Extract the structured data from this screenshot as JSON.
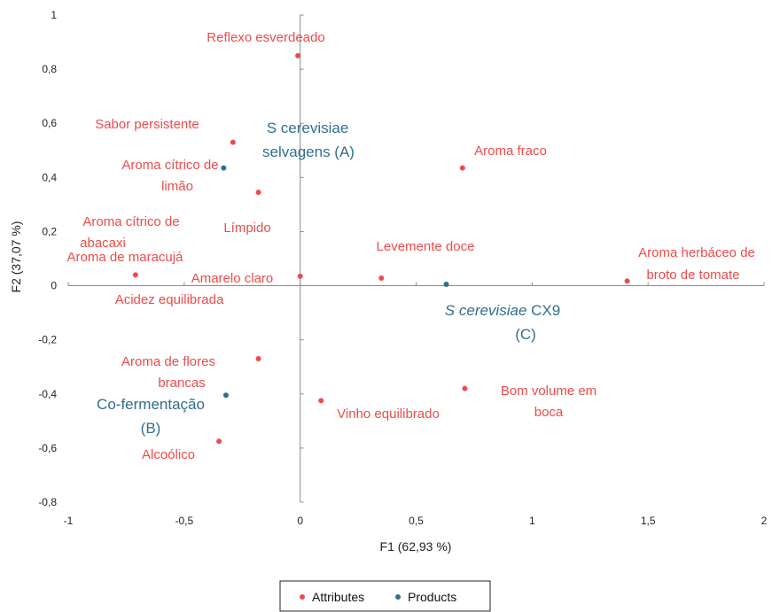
{
  "colors": {
    "attributes": "#ef4a4a",
    "products": "#2f6f8f",
    "axis": "#8c8c8c"
  },
  "chart_data": {
    "type": "scatter",
    "title": "",
    "xlabel": "F1 (62,93 %)",
    "ylabel": "F2 (37,07 %)",
    "xlim": [
      -1,
      2
    ],
    "ylim": [
      -0.8,
      1
    ],
    "xticks": [
      -1,
      -0.5,
      0,
      0.5,
      1,
      1.5,
      2
    ],
    "xtick_labels": [
      "-1",
      "-0,5",
      "0",
      "0,5",
      "1",
      "1,5",
      "2"
    ],
    "yticks": [
      1,
      0.8,
      0.6,
      0.4,
      0.2,
      0,
      -0.2,
      -0.4,
      -0.6,
      -0.8
    ],
    "ytick_labels": [
      "1",
      "0,8",
      "0,6",
      "0,4",
      "0,2",
      "0",
      "-0,2",
      "-0,4",
      "-0,6",
      "-0,8"
    ],
    "grid": false,
    "legend_position": "bottom-center",
    "series": [
      {
        "name": "Attributes",
        "color": "#ef4a4a",
        "points": [
          {
            "x": -0.01,
            "y": 0.85,
            "label": [
              "Reflexo esverdeado"
            ]
          },
          {
            "x": -0.29,
            "y": 0.53,
            "label": [
              "Sabor persistente"
            ]
          },
          {
            "x": -0.18,
            "y": 0.345,
            "label": [
              "Aroma cítrico de",
              "limão"
            ]
          },
          {
            "x": 0.7,
            "y": 0.435,
            "label": [
              "Aroma fraco"
            ]
          },
          {
            "x": -0.71,
            "y": 0.04,
            "label": [
              "Aroma cítrico de",
              "abacaxi"
            ]
          },
          {
            "x": 0.0,
            "y": 0.035,
            "label": [
              "Límpido"
            ]
          },
          {
            "x": 0.35,
            "y": 0.028,
            "label": [
              "Levemente doce"
            ]
          },
          {
            "x": 1.41,
            "y": 0.017,
            "label": [
              "Aroma herbáceo de",
              "broto de tomate"
            ]
          },
          {
            "x": -0.18,
            "y": -0.27,
            "label": [
              "Aroma de flores",
              "brancas"
            ]
          },
          {
            "x": 0.09,
            "y": -0.425,
            "label": [
              "Vinho equilibrado"
            ]
          },
          {
            "x": 0.71,
            "y": -0.38,
            "label": [
              "Bom volume em",
              "boca"
            ]
          },
          {
            "x": -0.35,
            "y": -0.575,
            "label": [
              "Alcoólico"
            ]
          },
          {
            "label": [
              "Aroma de maracujá"
            ]
          },
          {
            "label": [
              "Amarelo claro"
            ]
          },
          {
            "label": [
              "Acidez equilibrada"
            ]
          }
        ]
      },
      {
        "name": "Products",
        "color": "#2f6f8f",
        "points": [
          {
            "x": -0.33,
            "y": 0.435,
            "label": [
              "S cerevisiae",
              "selvagens (A)"
            ]
          },
          {
            "x": 0.63,
            "y": 0.005,
            "label": [
              "S cerevisiae CX9",
              "(C)"
            ]
          },
          {
            "x": -0.32,
            "y": -0.405,
            "label": [
              "Co-fermentação",
              "(B)"
            ]
          }
        ]
      }
    ]
  },
  "product_labels": {
    "a_line1": "S cerevisiae",
    "a_line2": "selvagens (A)",
    "c_italic": "S cerevisiae",
    "c_rest": " CX9",
    "c_line2": "(C)",
    "b_line1": "Co-fermentação",
    "b_line2": "(B)"
  },
  "legend": {
    "attributes": "Attributes",
    "products": "Products"
  }
}
